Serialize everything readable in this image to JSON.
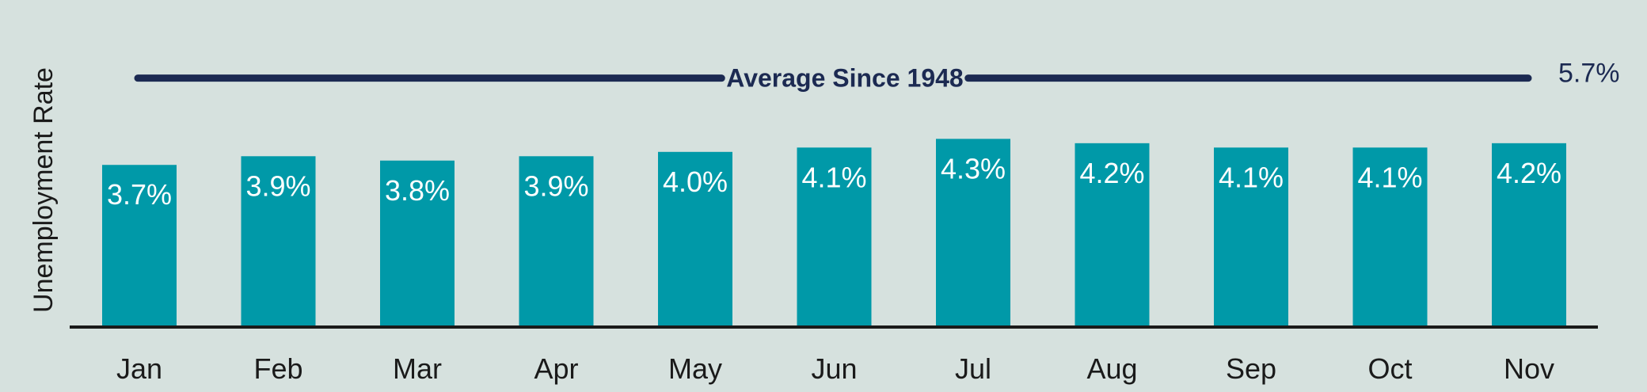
{
  "chart_data": {
    "type": "bar",
    "title": "",
    "xlabel": "",
    "ylabel": "Unemployment Rate",
    "categories": [
      "Jan",
      "Feb",
      "Mar",
      "Apr",
      "May",
      "Jun",
      "Jul",
      "Aug",
      "Sep",
      "Oct",
      "Nov"
    ],
    "values": [
      3.7,
      3.9,
      3.8,
      3.9,
      4.0,
      4.1,
      4.3,
      4.2,
      4.1,
      4.1,
      4.2
    ],
    "value_labels": [
      "3.7%",
      "3.9%",
      "3.8%",
      "3.9%",
      "4.0%",
      "4.1%",
      "4.3%",
      "4.2%",
      "4.1%",
      "4.1%",
      "4.2%"
    ],
    "ylim": [
      0,
      6.0
    ],
    "grid": false,
    "reference_line": {
      "label": "Average Since 1948",
      "value": 5.7,
      "value_label": "5.7%"
    },
    "colors": {
      "background": "#d6e1de",
      "bar": "#0099a8",
      "reference_line": "#1c2a52",
      "axis": "#1a1a1a"
    }
  }
}
